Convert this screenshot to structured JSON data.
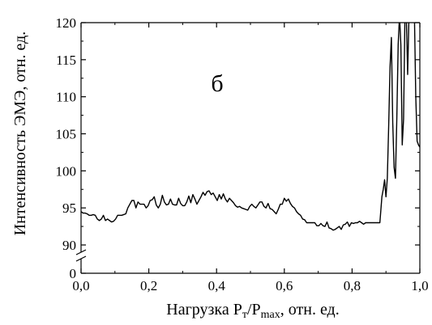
{
  "chart_data": {
    "type": "line",
    "panel_label": "б",
    "xlabel": {
      "main": "Нагрузка P",
      "sub1": "т",
      "slash": "/P",
      "sub2": "max",
      "tail": ", отн. ед."
    },
    "ylabel": "Интенсивность ЭМЭ, отн. ед.",
    "xlim": [
      0.0,
      1.0
    ],
    "ylim_upper": [
      90,
      120
    ],
    "ylim_lower": [
      0,
      0
    ],
    "axis_break": "between 0 and 90",
    "x_ticks": [
      "0,0",
      "0,2",
      "0,4",
      "0,6",
      "0,8",
      "1,0"
    ],
    "y_ticks": [
      "0",
      "90",
      "95",
      "100",
      "105",
      "110",
      "115",
      "120"
    ],
    "grid": false,
    "series": [
      {
        "color": "#000000",
        "x": [
          0.0,
          0.006,
          0.012,
          0.018,
          0.024,
          0.03,
          0.036,
          0.042,
          0.048,
          0.054,
          0.06,
          0.066,
          0.072,
          0.078,
          0.084,
          0.09,
          0.096,
          0.102,
          0.108,
          0.114,
          0.12,
          0.126,
          0.132,
          0.138,
          0.144,
          0.15,
          0.156,
          0.162,
          0.168,
          0.174,
          0.18,
          0.186,
          0.192,
          0.198,
          0.204,
          0.21,
          0.216,
          0.222,
          0.228,
          0.234,
          0.24,
          0.246,
          0.252,
          0.258,
          0.264,
          0.27,
          0.276,
          0.282,
          0.288,
          0.294,
          0.3,
          0.306,
          0.312,
          0.318,
          0.324,
          0.33,
          0.336,
          0.342,
          0.348,
          0.354,
          0.36,
          0.366,
          0.372,
          0.378,
          0.384,
          0.39,
          0.396,
          0.402,
          0.408,
          0.414,
          0.42,
          0.426,
          0.432,
          0.438,
          0.444,
          0.45,
          0.456,
          0.462,
          0.468,
          0.474,
          0.48,
          0.486,
          0.492,
          0.498,
          0.504,
          0.51,
          0.516,
          0.522,
          0.528,
          0.534,
          0.54,
          0.546,
          0.552,
          0.558,
          0.564,
          0.57,
          0.576,
          0.582,
          0.588,
          0.594,
          0.6,
          0.606,
          0.612,
          0.618,
          0.624,
          0.63,
          0.636,
          0.642,
          0.648,
          0.654,
          0.66,
          0.666,
          0.672,
          0.678,
          0.684,
          0.69,
          0.696,
          0.702,
          0.708,
          0.714,
          0.72,
          0.726,
          0.732,
          0.738,
          0.744,
          0.75,
          0.756,
          0.762,
          0.768,
          0.774,
          0.78,
          0.786,
          0.792,
          0.798,
          0.804,
          0.81,
          0.816,
          0.822,
          0.828,
          0.834,
          0.84,
          0.846,
          0.852,
          0.858,
          0.864,
          0.87,
          0.876,
          0.882,
          0.888,
          0.892,
          0.896,
          0.9,
          0.904,
          0.908,
          0.912,
          0.916,
          0.92,
          0.924,
          0.928,
          0.932,
          0.936,
          0.94,
          0.944,
          0.948,
          0.952,
          0.956,
          0.96,
          0.964,
          0.968,
          0.972,
          0.976,
          0.98,
          0.984,
          0.988,
          0.992,
          0.996,
          1.0
        ],
        "y": [
          94.5,
          94.3,
          94.3,
          94.2,
          94.0,
          94.0,
          94.1,
          94.0,
          93.5,
          93.3,
          93.5,
          94.0,
          93.3,
          93.5,
          93.3,
          93.1,
          93.2,
          93.5,
          94.0,
          94.0,
          94.0,
          94.1,
          94.2,
          95.0,
          95.5,
          96.0,
          96.0,
          95.0,
          95.8,
          95.5,
          95.5,
          95.5,
          95.0,
          95.3,
          96.0,
          96.1,
          96.5,
          95.4,
          95.0,
          95.5,
          96.7,
          95.8,
          95.4,
          95.5,
          96.2,
          95.5,
          95.4,
          95.4,
          96.3,
          95.6,
          95.3,
          95.3,
          95.8,
          96.6,
          95.7,
          96.8,
          96.2,
          95.5,
          96.0,
          96.5,
          97.1,
          96.7,
          97.2,
          97.3,
          96.8,
          97.0,
          96.5,
          96.0,
          96.8,
          96.2,
          96.9,
          96.2,
          95.8,
          96.3,
          96.0,
          95.7,
          95.3,
          95.1,
          95.2,
          95.0,
          94.9,
          94.8,
          94.7,
          95.2,
          95.5,
          95.2,
          95.0,
          95.4,
          95.8,
          95.8,
          95.2,
          95.0,
          95.6,
          94.9,
          94.8,
          94.5,
          94.2,
          94.8,
          95.5,
          95.5,
          96.3,
          95.9,
          96.2,
          95.6,
          95.2,
          95.0,
          94.5,
          94.2,
          94.0,
          93.5,
          93.4,
          93.0,
          93.0,
          93.0,
          93.0,
          93.0,
          92.6,
          92.6,
          92.9,
          92.6,
          92.5,
          93.1,
          92.3,
          92.2,
          92.0,
          92.1,
          92.3,
          92.5,
          92.1,
          92.7,
          92.8,
          93.1,
          92.5,
          93.0,
          92.9,
          93.0,
          93.0,
          93.2,
          93.0,
          92.8,
          93.0,
          93.0,
          93.0,
          93.0,
          93.0,
          93.0,
          93.0,
          93.0,
          96.5,
          97.5,
          98.8,
          96.5,
          99.0,
          106.0,
          114.0,
          118.0,
          106.5,
          100.5,
          99.0,
          107.0,
          117.0,
          121.0,
          117.0,
          103.5,
          107.0,
          121.0,
          121.0,
          113.0,
          121.0,
          121.0,
          121.0,
          121.0,
          121.0,
          110.0,
          104.0,
          103.5,
          103.2
        ]
      }
    ]
  }
}
